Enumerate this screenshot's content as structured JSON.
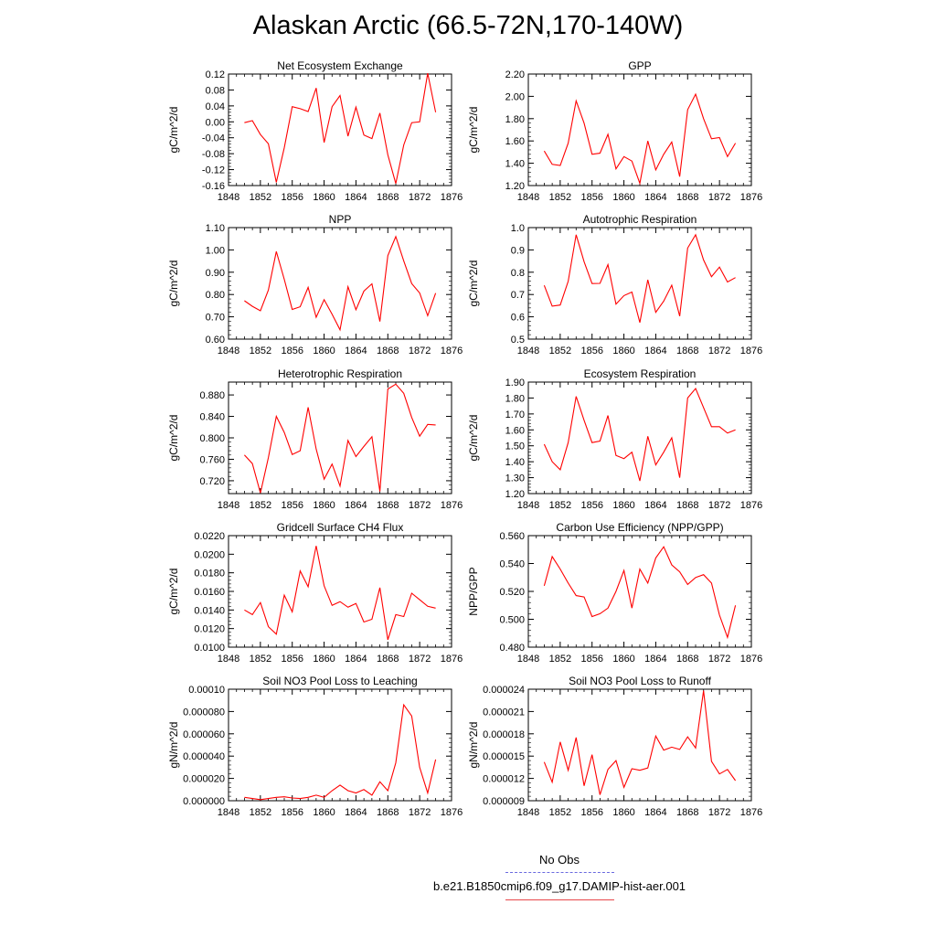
{
  "title": "Alaskan Arctic (66.5-72N,170-140W)",
  "legend": {
    "entries": [
      {
        "label": "No Obs",
        "color": "#6a6adf",
        "style": "dashed"
      },
      {
        "label": "b.e21.B1850cmip6.f09_g17.DAMIP-hist-aer.001",
        "color": "#e8474a",
        "style": "solid"
      }
    ]
  },
  "series_color": "#ff0000",
  "chart_data": [
    {
      "type": "line",
      "title": "Net Ecosystem Exchange",
      "ylabel": "gC/m^2/d",
      "xlim": [
        1848,
        1876
      ],
      "xticks": [
        "1848",
        "1852",
        "1856",
        "1860",
        "1864",
        "1868",
        "1872",
        "1876"
      ],
      "ylim": [
        -0.16,
        0.12
      ],
      "yticks": [
        "0.12",
        "0.08",
        "0.04",
        "0.00",
        "-0.04",
        "-0.08",
        "-0.12",
        "-0.16"
      ],
      "x": [
        1850,
        1851,
        1852,
        1853,
        1854,
        1855,
        1856,
        1857,
        1858,
        1859,
        1860,
        1861,
        1862,
        1863,
        1864,
        1865,
        1866,
        1867,
        1868,
        1869,
        1870,
        1871,
        1872,
        1873,
        1874
      ],
      "y": [
        -0.002,
        0.003,
        -0.032,
        -0.055,
        -0.152,
        -0.065,
        0.038,
        0.033,
        0.026,
        0.085,
        -0.052,
        0.038,
        0.066,
        -0.036,
        0.037,
        -0.033,
        -0.042,
        0.022,
        -0.083,
        -0.155,
        -0.058,
        -0.002,
        0.0,
        0.122,
        0.024
      ]
    },
    {
      "type": "line",
      "title": "GPP",
      "ylabel": "gC/m^2/d",
      "xlim": [
        1848,
        1876
      ],
      "xticks": [
        "1848",
        "1852",
        "1856",
        "1860",
        "1864",
        "1868",
        "1872",
        "1876"
      ],
      "ylim": [
        1.2,
        2.2
      ],
      "yticks": [
        "2.20",
        "2.00",
        "1.80",
        "1.60",
        "1.40",
        "1.20"
      ],
      "x": [
        1850,
        1851,
        1852,
        1853,
        1854,
        1855,
        1856,
        1857,
        1858,
        1859,
        1860,
        1861,
        1862,
        1863,
        1864,
        1865,
        1866,
        1867,
        1868,
        1869,
        1870,
        1871,
        1872,
        1873,
        1874
      ],
      "y": [
        1.51,
        1.39,
        1.38,
        1.58,
        1.96,
        1.76,
        1.48,
        1.49,
        1.66,
        1.35,
        1.46,
        1.42,
        1.22,
        1.6,
        1.34,
        1.48,
        1.59,
        1.28,
        1.88,
        2.02,
        1.8,
        1.62,
        1.63,
        1.46,
        1.58
      ]
    },
    {
      "type": "line",
      "title": "NPP",
      "ylabel": "gC/m^2/d",
      "xlim": [
        1848,
        1876
      ],
      "xticks": [
        "1848",
        "1852",
        "1856",
        "1860",
        "1864",
        "1868",
        "1872",
        "1876"
      ],
      "ylim": [
        0.6,
        1.1
      ],
      "yticks": [
        "1.10",
        "1.00",
        "0.90",
        "0.80",
        "0.70",
        "0.60"
      ],
      "x": [
        1850,
        1851,
        1852,
        1853,
        1854,
        1855,
        1856,
        1857,
        1858,
        1859,
        1860,
        1861,
        1862,
        1863,
        1864,
        1865,
        1866,
        1867,
        1868,
        1869,
        1870,
        1871,
        1872,
        1873,
        1874
      ],
      "y": [
        0.772,
        0.747,
        0.727,
        0.82,
        0.993,
        0.868,
        0.733,
        0.745,
        0.832,
        0.698,
        0.777,
        0.712,
        0.642,
        0.835,
        0.732,
        0.815,
        0.848,
        0.679,
        0.974,
        1.06,
        0.951,
        0.849,
        0.807,
        0.705,
        0.806
      ]
    },
    {
      "type": "line",
      "title": "Autotrophic Respiration",
      "ylabel": "gC/m^2/d",
      "xlim": [
        1848,
        1876
      ],
      "xticks": [
        "1848",
        "1852",
        "1856",
        "1860",
        "1864",
        "1868",
        "1872",
        "1876"
      ],
      "ylim": [
        0.5,
        1.0
      ],
      "yticks": [
        "1.0",
        "0.9",
        "0.8",
        "0.7",
        "0.6",
        "0.5"
      ],
      "x": [
        1850,
        1851,
        1852,
        1853,
        1854,
        1855,
        1856,
        1857,
        1858,
        1859,
        1860,
        1861,
        1862,
        1863,
        1864,
        1865,
        1866,
        1867,
        1868,
        1869,
        1870,
        1871,
        1872,
        1873,
        1874
      ],
      "y": [
        0.741,
        0.648,
        0.653,
        0.759,
        0.968,
        0.847,
        0.749,
        0.75,
        0.834,
        0.657,
        0.695,
        0.711,
        0.574,
        0.766,
        0.62,
        0.67,
        0.742,
        0.603,
        0.908,
        0.968,
        0.855,
        0.78,
        0.823,
        0.756,
        0.776
      ]
    },
    {
      "type": "line",
      "title": "Heterotrophic Respiration",
      "ylabel": "gC/m^2/d",
      "xlim": [
        1848,
        1876
      ],
      "xticks": [
        "1848",
        "1852",
        "1856",
        "1860",
        "1864",
        "1868",
        "1872",
        "1876"
      ],
      "ylim": [
        0.696,
        0.904
      ],
      "yticks": [
        "0.880",
        "0.840",
        "0.800",
        "0.760",
        "0.720"
      ],
      "ytick_values": [
        0.88,
        0.84,
        0.8,
        0.76,
        0.72
      ],
      "x": [
        1850,
        1851,
        1852,
        1853,
        1854,
        1855,
        1856,
        1857,
        1858,
        1859,
        1860,
        1861,
        1862,
        1863,
        1864,
        1865,
        1866,
        1867,
        1868,
        1869,
        1870,
        1871,
        1872,
        1873,
        1874
      ],
      "y": [
        0.768,
        0.752,
        0.697,
        0.763,
        0.84,
        0.81,
        0.769,
        0.776,
        0.857,
        0.779,
        0.723,
        0.751,
        0.71,
        0.795,
        0.765,
        0.784,
        0.802,
        0.7,
        0.891,
        0.9,
        0.883,
        0.838,
        0.803,
        0.825,
        0.824
      ]
    },
    {
      "type": "line",
      "title": "Ecosystem Respiration",
      "ylabel": "gC/m^2/d",
      "xlim": [
        1848,
        1876
      ],
      "xticks": [
        "1848",
        "1852",
        "1856",
        "1860",
        "1864",
        "1868",
        "1872",
        "1876"
      ],
      "ylim": [
        1.2,
        1.9
      ],
      "yticks": [
        "1.90",
        "1.80",
        "1.70",
        "1.60",
        "1.50",
        "1.40",
        "1.30",
        "1.20"
      ],
      "x": [
        1850,
        1851,
        1852,
        1853,
        1854,
        1855,
        1856,
        1857,
        1858,
        1859,
        1860,
        1861,
        1862,
        1863,
        1864,
        1865,
        1866,
        1867,
        1868,
        1869,
        1870,
        1871,
        1872,
        1873,
        1874
      ],
      "y": [
        1.51,
        1.4,
        1.35,
        1.52,
        1.81,
        1.66,
        1.52,
        1.53,
        1.69,
        1.44,
        1.42,
        1.46,
        1.28,
        1.56,
        1.38,
        1.46,
        1.55,
        1.3,
        1.8,
        1.86,
        1.74,
        1.62,
        1.62,
        1.58,
        1.6
      ]
    },
    {
      "type": "line",
      "title": "Gridcell Surface CH4 Flux",
      "ylabel": "gC/m^2/d",
      "xlim": [
        1848,
        1876
      ],
      "xticks": [
        "1848",
        "1852",
        "1856",
        "1860",
        "1864",
        "1868",
        "1872",
        "1876"
      ],
      "ylim": [
        0.01,
        0.022
      ],
      "yticks": [
        "0.0220",
        "0.0200",
        "0.0180",
        "0.0160",
        "0.0140",
        "0.0120",
        "0.0100"
      ],
      "x": [
        1850,
        1851,
        1852,
        1853,
        1854,
        1855,
        1856,
        1857,
        1858,
        1859,
        1860,
        1861,
        1862,
        1863,
        1864,
        1865,
        1866,
        1867,
        1868,
        1869,
        1870,
        1871,
        1872,
        1873,
        1874
      ],
      "y": [
        0.014,
        0.0135,
        0.0148,
        0.0122,
        0.0114,
        0.0156,
        0.0138,
        0.0182,
        0.0165,
        0.0209,
        0.0166,
        0.0145,
        0.0149,
        0.0143,
        0.0147,
        0.0127,
        0.013,
        0.0164,
        0.0108,
        0.0135,
        0.0133,
        0.0158,
        0.0151,
        0.0144,
        0.0142
      ]
    },
    {
      "type": "line",
      "title": "Carbon Use Efficiency (NPP/GPP)",
      "ylabel": "NPP/GPP",
      "xlim": [
        1848,
        1876
      ],
      "xticks": [
        "1848",
        "1852",
        "1856",
        "1860",
        "1864",
        "1868",
        "1872",
        "1876"
      ],
      "ylim": [
        0.48,
        0.56
      ],
      "yticks": [
        "0.560",
        "0.540",
        "0.520",
        "0.500",
        "0.480"
      ],
      "x": [
        1850,
        1851,
        1852,
        1853,
        1854,
        1855,
        1856,
        1857,
        1858,
        1859,
        1860,
        1861,
        1862,
        1863,
        1864,
        1865,
        1866,
        1867,
        1868,
        1869,
        1870,
        1871,
        1872,
        1873,
        1874
      ],
      "y": [
        0.524,
        0.545,
        0.536,
        0.526,
        0.517,
        0.516,
        0.502,
        0.504,
        0.508,
        0.52,
        0.535,
        0.508,
        0.536,
        0.526,
        0.544,
        0.552,
        0.539,
        0.534,
        0.525,
        0.53,
        0.532,
        0.526,
        0.503,
        0.487,
        0.51
      ]
    },
    {
      "type": "line",
      "title": "Soil NO3 Pool Loss to Leaching",
      "ylabel": "gN/m^2/d",
      "xlim": [
        1848,
        1876
      ],
      "xticks": [
        "1848",
        "1852",
        "1856",
        "1860",
        "1864",
        "1868",
        "1872",
        "1876"
      ],
      "ylim": [
        0.0,
        0.0001
      ],
      "yticks": [
        "0.00010",
        "0.000080",
        "0.000060",
        "0.000040",
        "0.000020",
        "0.000000"
      ],
      "x": [
        1850,
        1851,
        1852,
        1853,
        1854,
        1855,
        1856,
        1857,
        1858,
        1859,
        1860,
        1861,
        1862,
        1863,
        1864,
        1865,
        1866,
        1867,
        1868,
        1869,
        1870,
        1871,
        1872,
        1873,
        1874
      ],
      "y": [
        3e-06,
        2e-06,
        1e-06,
        2e-06,
        3e-06,
        3.5e-06,
        2.5e-06,
        2e-06,
        3e-06,
        5e-06,
        3e-06,
        9e-06,
        1.4e-05,
        9e-06,
        7e-06,
        1e-05,
        5e-06,
        1.7e-05,
        9e-06,
        3.4e-05,
        8.6e-05,
        7.6e-05,
        3e-05,
        7e-06,
        3.7e-05
      ]
    },
    {
      "type": "line",
      "title": "Soil NO3 Pool Loss to Runoff",
      "ylabel": "gN/m^2/d",
      "xlim": [
        1848,
        1876
      ],
      "xticks": [
        "1848",
        "1852",
        "1856",
        "1860",
        "1864",
        "1868",
        "1872",
        "1876"
      ],
      "ylim": [
        9e-06,
        2.4e-05
      ],
      "yticks": [
        "0.000024",
        "0.000021",
        "0.000018",
        "0.000015",
        "0.000012",
        "0.000009"
      ],
      "x": [
        1850,
        1851,
        1852,
        1853,
        1854,
        1855,
        1856,
        1857,
        1858,
        1859,
        1860,
        1861,
        1862,
        1863,
        1864,
        1865,
        1866,
        1867,
        1868,
        1869,
        1870,
        1871,
        1872,
        1873,
        1874
      ],
      "y": [
        1.42e-05,
        1.15e-05,
        1.69e-05,
        1.31e-05,
        1.75e-05,
        1.1e-05,
        1.52e-05,
        9.8e-06,
        1.32e-05,
        1.44e-05,
        1.08e-05,
        1.33e-05,
        1.31e-05,
        1.34e-05,
        1.77e-05,
        1.58e-05,
        1.62e-05,
        1.59e-05,
        1.76e-05,
        1.61e-05,
        2.38e-05,
        1.43e-05,
        1.26e-05,
        1.32e-05,
        1.17e-05
      ]
    }
  ]
}
